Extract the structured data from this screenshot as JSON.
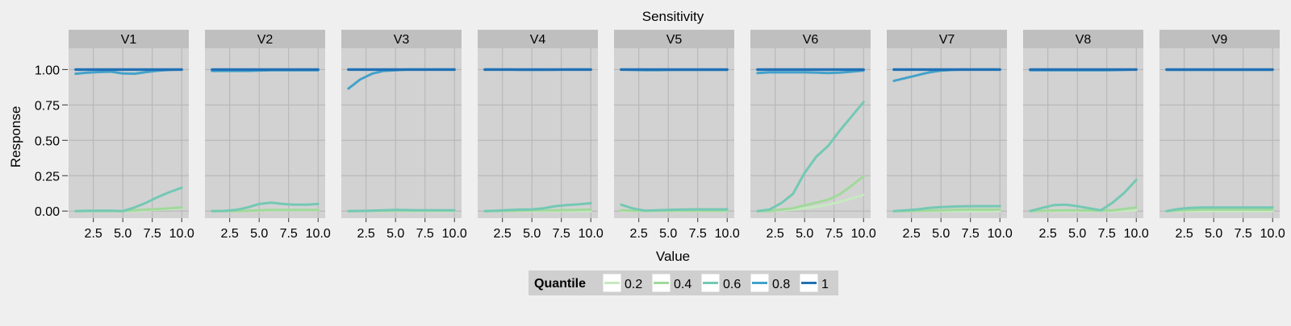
{
  "chart_data": {
    "type": "line",
    "title": "Sensitivity",
    "xlabel": "Value",
    "ylabel": "Response",
    "xlim": [
      0.4,
      10.6
    ],
    "ylim": [
      -0.05,
      1.15
    ],
    "x_ticks": [
      "2.5",
      "5.0",
      "7.5",
      "10.0"
    ],
    "x_tick_values": [
      2.5,
      5.0,
      7.5,
      10.0
    ],
    "y_ticks": [
      "0.00",
      "0.25",
      "0.50",
      "0.75",
      "1.00"
    ],
    "y_tick_values": [
      0,
      0.25,
      0.5,
      0.75,
      1.0
    ],
    "grid": true,
    "legend": {
      "title": "Quantile",
      "position": "bottom",
      "entries": [
        {
          "label": "0.2",
          "color": "#c7e9c0"
        },
        {
          "label": "0.4",
          "color": "#a1d99b"
        },
        {
          "label": "0.6",
          "color": "#74c8b4"
        },
        {
          "label": "0.8",
          "color": "#43a2ca"
        },
        {
          "label": "1",
          "color": "#2171b5"
        }
      ]
    },
    "x": [
      1,
      2,
      3,
      4,
      5,
      6,
      7,
      8,
      9,
      10
    ],
    "panels": [
      {
        "name": "V1",
        "series": [
          {
            "name": "0.2",
            "values": [
              0,
              0,
              0,
              0,
              0,
              0,
              0.005,
              0.01,
              0.015,
              0.02
            ]
          },
          {
            "name": "0.4",
            "values": [
              0,
              0,
              0,
              0,
              0,
              0.005,
              0.01,
              0.015,
              0.02,
              0.025
            ]
          },
          {
            "name": "0.6",
            "values": [
              0,
              0.002,
              0.003,
              0.003,
              0,
              0.025,
              0.06,
              0.1,
              0.135,
              0.165
            ]
          },
          {
            "name": "0.8",
            "values": [
              0.97,
              0.978,
              0.982,
              0.985,
              0.972,
              0.97,
              0.982,
              0.992,
              0.998,
              1.0
            ]
          },
          {
            "name": "1",
            "values": [
              1,
              1,
              1,
              1,
              1,
              1,
              1,
              1,
              1,
              1
            ]
          }
        ]
      },
      {
        "name": "V2",
        "series": [
          {
            "name": "0.2",
            "values": [
              0,
              0,
              0,
              0,
              0.003,
              0.005,
              0.005,
              0.005,
              0.005,
              0.005
            ]
          },
          {
            "name": "0.4",
            "values": [
              0,
              0,
              0,
              0.002,
              0.006,
              0.008,
              0.008,
              0.008,
              0.008,
              0.008
            ]
          },
          {
            "name": "0.6",
            "values": [
              0,
              0.001,
              0.008,
              0.025,
              0.05,
              0.06,
              0.05,
              0.045,
              0.045,
              0.05
            ]
          },
          {
            "name": "0.8",
            "values": [
              0.99,
              0.99,
              0.99,
              0.99,
              0.993,
              0.995,
              0.995,
              0.995,
              0.995,
              0.995
            ]
          },
          {
            "name": "1",
            "values": [
              1,
              1,
              1,
              1,
              1,
              1,
              1,
              1,
              1,
              1
            ]
          }
        ]
      },
      {
        "name": "V3",
        "series": [
          {
            "name": "0.2",
            "values": [
              0,
              0,
              0,
              0,
              0,
              0,
              0,
              0,
              0,
              0
            ]
          },
          {
            "name": "0.4",
            "values": [
              0,
              0,
              0.002,
              0.003,
              0.003,
              0.003,
              0.003,
              0.003,
              0.003,
              0.003
            ]
          },
          {
            "name": "0.6",
            "values": [
              0,
              0.001,
              0.003,
              0.006,
              0.008,
              0.007,
              0.005,
              0.005,
              0.005,
              0.005
            ]
          },
          {
            "name": "0.8",
            "values": [
              0.865,
              0.93,
              0.97,
              0.99,
              0.995,
              1.0,
              1.0,
              1.0,
              1.0,
              1.0
            ]
          },
          {
            "name": "1",
            "values": [
              1,
              1,
              1,
              1,
              1,
              1,
              1,
              1,
              1,
              1
            ]
          }
        ]
      },
      {
        "name": "V4",
        "series": [
          {
            "name": "0.2",
            "values": [
              0,
              0,
              0,
              0,
              0,
              0,
              0,
              0,
              0,
              0
            ]
          },
          {
            "name": "0.4",
            "values": [
              0,
              0,
              0.002,
              0.003,
              0.004,
              0.005,
              0.006,
              0.007,
              0.008,
              0.01
            ]
          },
          {
            "name": "0.6",
            "values": [
              0,
              0.003,
              0.007,
              0.01,
              0.012,
              0.02,
              0.035,
              0.042,
              0.048,
              0.055
            ]
          },
          {
            "name": "0.8",
            "values": [
              1.0,
              1.0,
              1.0,
              0.998,
              0.998,
              0.998,
              0.999,
              1.0,
              1.0,
              1.0
            ]
          },
          {
            "name": "1",
            "values": [
              1,
              1,
              1,
              1,
              1,
              1,
              1,
              1,
              1,
              1
            ]
          }
        ]
      },
      {
        "name": "V5",
        "series": [
          {
            "name": "0.2",
            "values": [
              0,
              0,
              0,
              0,
              0,
              0,
              0,
              0,
              0,
              0
            ]
          },
          {
            "name": "0.4",
            "values": [
              0.005,
              0.003,
              0.002,
              0.002,
              0.003,
              0.003,
              0.003,
              0.003,
              0.003,
              0.003
            ]
          },
          {
            "name": "0.6",
            "values": [
              0.045,
              0.018,
              0.003,
              0.005,
              0.008,
              0.01,
              0.012,
              0.012,
              0.012,
              0.012
            ]
          },
          {
            "name": "0.8",
            "values": [
              1.0,
              0.998,
              0.996,
              0.996,
              0.997,
              0.998,
              0.998,
              0.998,
              0.998,
              0.998
            ]
          },
          {
            "name": "1",
            "values": [
              1,
              1,
              1,
              1,
              1,
              1,
              1,
              1,
              1,
              1
            ]
          }
        ]
      },
      {
        "name": "V6",
        "series": [
          {
            "name": "0.2",
            "values": [
              0,
              0,
              0.005,
              0.01,
              0.02,
              0.03,
              0.045,
              0.065,
              0.09,
              0.115
            ]
          },
          {
            "name": "0.4",
            "values": [
              0,
              0,
              0.01,
              0.02,
              0.04,
              0.06,
              0.08,
              0.12,
              0.18,
              0.245
            ]
          },
          {
            "name": "0.6",
            "values": [
              0,
              0.01,
              0.055,
              0.12,
              0.27,
              0.385,
              0.46,
              0.57,
              0.67,
              0.77
            ]
          },
          {
            "name": "0.8",
            "values": [
              0.975,
              0.98,
              0.98,
              0.98,
              0.98,
              0.978,
              0.975,
              0.978,
              0.985,
              0.993
            ]
          },
          {
            "name": "1",
            "values": [
              1,
              1,
              1,
              1,
              1,
              1,
              1,
              1,
              1,
              1
            ]
          }
        ]
      },
      {
        "name": "V7",
        "series": [
          {
            "name": "0.2",
            "values": [
              0,
              0,
              0,
              0,
              0,
              0,
              0,
              0,
              0,
              0
            ]
          },
          {
            "name": "0.4",
            "values": [
              0,
              0,
              0.002,
              0.004,
              0.006,
              0.008,
              0.01,
              0.01,
              0.01,
              0.01
            ]
          },
          {
            "name": "0.6",
            "values": [
              0,
              0.005,
              0.012,
              0.022,
              0.028,
              0.032,
              0.034,
              0.035,
              0.035,
              0.035
            ]
          },
          {
            "name": "0.8",
            "values": [
              0.92,
              0.94,
              0.96,
              0.98,
              0.992,
              0.998,
              1.0,
              1.0,
              1.0,
              1.0
            ]
          },
          {
            "name": "1",
            "values": [
              1,
              1,
              1,
              1,
              1,
              1,
              1,
              1,
              1,
              1
            ]
          }
        ]
      },
      {
        "name": "V8",
        "series": [
          {
            "name": "0.2",
            "values": [
              0,
              0,
              0,
              0,
              0,
              0,
              0,
              0,
              0.002,
              0.005
            ]
          },
          {
            "name": "0.4",
            "values": [
              0,
              0.002,
              0.004,
              0.005,
              0.005,
              0.004,
              0.003,
              0.006,
              0.015,
              0.025
            ]
          },
          {
            "name": "0.6",
            "values": [
              0,
              0.022,
              0.042,
              0.045,
              0.035,
              0.02,
              0.005,
              0.06,
              0.13,
              0.22
            ]
          },
          {
            "name": "0.8",
            "values": [
              0.995,
              0.995,
              0.995,
              0.995,
              0.995,
              0.995,
              0.995,
              0.996,
              0.998,
              1.0
            ]
          },
          {
            "name": "1",
            "values": [
              1,
              1,
              1,
              1,
              1,
              1,
              1,
              1,
              1,
              1
            ]
          }
        ]
      },
      {
        "name": "V9",
        "series": [
          {
            "name": "0.2",
            "values": [
              0,
              0,
              0,
              0,
              0,
              0,
              0,
              0,
              0,
              0
            ]
          },
          {
            "name": "0.4",
            "values": [
              0,
              0.004,
              0.008,
              0.01,
              0.01,
              0.01,
              0.01,
              0.01,
              0.01,
              0.01
            ]
          },
          {
            "name": "0.6",
            "values": [
              0,
              0.015,
              0.022,
              0.025,
              0.025,
              0.025,
              0.025,
              0.025,
              0.025,
              0.025
            ]
          },
          {
            "name": "0.8",
            "values": [
              0.998,
              0.998,
              0.998,
              0.998,
              0.998,
              0.998,
              0.998,
              0.998,
              0.998,
              0.998
            ]
          },
          {
            "name": "1",
            "values": [
              1,
              1,
              1,
              1,
              1,
              1,
              1,
              1,
              1,
              1
            ]
          }
        ]
      }
    ]
  }
}
